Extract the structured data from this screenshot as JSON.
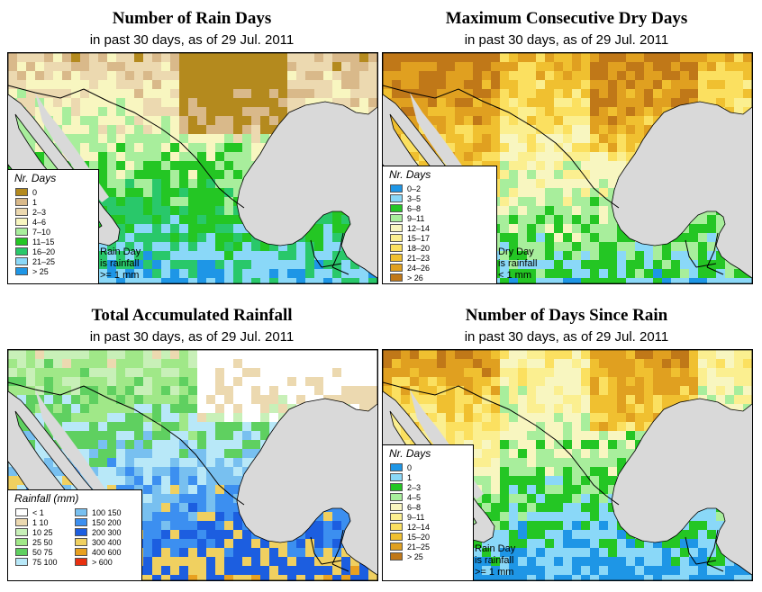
{
  "date_label": "29 Jul. 2011",
  "panels": [
    {
      "title": "Number of Rain Days",
      "subtitle": "in past 30 days, as of 29 Jul. 2011",
      "legend_title": "Nr. Days",
      "note": "Rain Day\nis rainfall\n>= 1 mm",
      "classes": [
        {
          "label": "0",
          "color": "#b48a1e"
        },
        {
          "label": "1",
          "color": "#d9b98a"
        },
        {
          "label": "2–3",
          "color": "#ecd9b0"
        },
        {
          "label": "4–6",
          "color": "#f8f6c0"
        },
        {
          "label": "7–10",
          "color": "#a8ee9c"
        },
        {
          "label": "11–15",
          "color": "#24c624"
        },
        {
          "label": "16–20",
          "color": "#29c86a"
        },
        {
          "label": "21–25",
          "color": "#8ad8f8"
        },
        {
          "label": "> 25",
          "color": "#1e96e6"
        }
      ]
    },
    {
      "title": "Maximum Consecutive Dry Days",
      "subtitle": "in past 30 days, as of 29 Jul. 2011",
      "legend_title": "Nr. Days",
      "note": "Dry Day\nis rainfall\n< 1 mm",
      "classes": [
        {
          "label": "0–2",
          "color": "#1e96e6"
        },
        {
          "label": "3–5",
          "color": "#8ad8f8"
        },
        {
          "label": "6–8",
          "color": "#24c624"
        },
        {
          "label": "9–11",
          "color": "#a8ee9c"
        },
        {
          "label": "12–14",
          "color": "#f8f6c0"
        },
        {
          "label": "15–17",
          "color": "#fbef90"
        },
        {
          "label": "18–20",
          "color": "#fbe060"
        },
        {
          "label": "21–23",
          "color": "#f0c030"
        },
        {
          "label": "24–26",
          "color": "#e0a020"
        },
        {
          "label": "> 26",
          "color": "#c07818"
        }
      ]
    },
    {
      "title": "Total Accumulated Rainfall",
      "subtitle": "in past 30 days, as of 29 Jul. 2011",
      "legend_title": "Rainfall (mm)",
      "note": "",
      "classes": [
        {
          "label": "< 1",
          "color": "#ffffff"
        },
        {
          "label": "1   10",
          "color": "#ecd9b0"
        },
        {
          "label": "10   25",
          "color": "#c8f0b8"
        },
        {
          "label": "25   50",
          "color": "#a0e888"
        },
        {
          "label": "50   75",
          "color": "#5fd060"
        },
        {
          "label": "75   100",
          "color": "#b8e8f8"
        },
        {
          "label": "100  150",
          "color": "#78c0f0"
        },
        {
          "label": "150  200",
          "color": "#3c8ff0"
        },
        {
          "label": "200  300",
          "color": "#1c5ee0"
        },
        {
          "label": "300  400",
          "color": "#f0d060"
        },
        {
          "label": "400  600",
          "color": "#e8a020"
        },
        {
          "label": "> 600",
          "color": "#e83010"
        }
      ]
    },
    {
      "title": "Number of Days Since Rain",
      "subtitle": "in past 30 days, as of 29 Jul. 2011",
      "legend_title": "Nr. Days",
      "note": "Rain Day\nis rainfall\n>= 1 mm",
      "classes": [
        {
          "label": "0",
          "color": "#1e96e6"
        },
        {
          "label": "1",
          "color": "#8ad8f8"
        },
        {
          "label": "2–3",
          "color": "#24c624"
        },
        {
          "label": "4–5",
          "color": "#a8ee9c"
        },
        {
          "label": "6–8",
          "color": "#f8f6c0"
        },
        {
          "label": "9–11",
          "color": "#fbef90"
        },
        {
          "label": "12–14",
          "color": "#fbe060"
        },
        {
          "label": "15–20",
          "color": "#f0c030"
        },
        {
          "label": "21–25",
          "color": "#e0a020"
        },
        {
          "label": "> 25",
          "color": "#c07818"
        }
      ]
    }
  ],
  "colors": {
    "ocean": "#d9d9d9",
    "boundary": "#000000"
  }
}
